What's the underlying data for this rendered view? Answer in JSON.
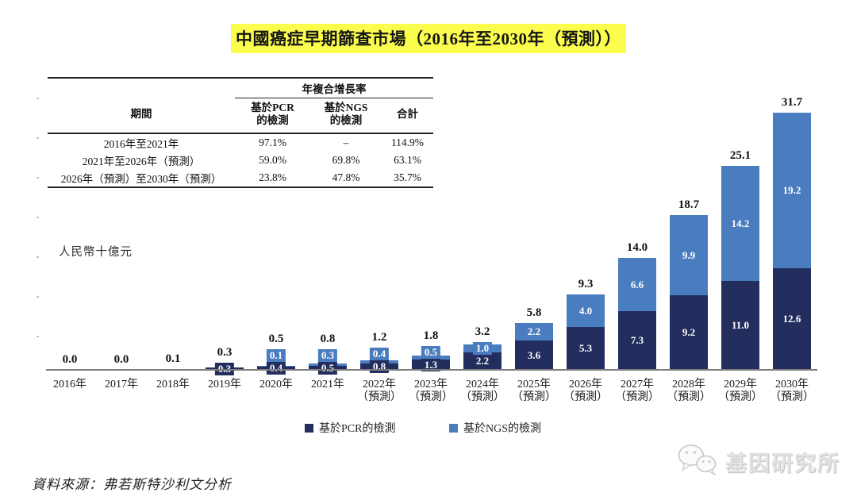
{
  "title": "中國癌症早期篩查市場（2016年至2030年（預測））",
  "cagr_table": {
    "group_header": "年複合增長率",
    "columns": [
      "期間",
      "基於PCR\n的檢測",
      "基於NGS\n的檢測",
      "合計"
    ],
    "rows": [
      [
        "2016年至2021年",
        "97.1%",
        "–",
        "114.9%"
      ],
      [
        "2021年至2026年（預測）",
        "59.0%",
        "69.8%",
        "63.1%"
      ],
      [
        "2026年（預測）至2030年（預測）",
        "23.8%",
        "47.8%",
        "35.7%"
      ]
    ]
  },
  "chart_data": {
    "type": "bar",
    "stacked": true,
    "title": "中國癌症早期篩查市場（2016年至2030年（預測））",
    "ylabel": "人民幣十億元",
    "xlabel": "",
    "ylim": [
      0,
      35
    ],
    "grid": false,
    "legend_position": "bottom",
    "categories": [
      "2016年",
      "2017年",
      "2018年",
      "2019年",
      "2020年",
      "2021年",
      "2022年",
      "2023年",
      "2024年",
      "2025年",
      "2026年",
      "2027年",
      "2028年",
      "2029年",
      "2030年"
    ],
    "forecast_suffix": "（預測）",
    "forecast_from_index": 6,
    "series": [
      {
        "name": "基於PCR的檢測",
        "color": "#232d5e",
        "values": [
          0.0,
          0.0,
          0.1,
          0.3,
          0.4,
          0.5,
          0.8,
          1.3,
          2.2,
          3.6,
          5.3,
          7.3,
          9.2,
          11.0,
          12.6
        ]
      },
      {
        "name": "基於NGS的檢測",
        "color": "#4a7dbf",
        "values": [
          null,
          null,
          null,
          null,
          0.1,
          0.3,
          0.4,
          0.5,
          1.0,
          2.2,
          4.0,
          6.6,
          9.9,
          14.2,
          19.2
        ]
      }
    ],
    "totals": [
      "0.0",
      "0.0",
      "0.1",
      "0.3",
      "0.5",
      "0.8",
      "1.2",
      "1.8",
      "3.2",
      "5.8",
      "9.3",
      "14.0",
      "18.7",
      "25.1",
      "31.7"
    ]
  },
  "source": "資料來源：弗若斯特沙利文分析",
  "watermark": {
    "name": "基因研究所",
    "icon": "wechat-icon"
  }
}
